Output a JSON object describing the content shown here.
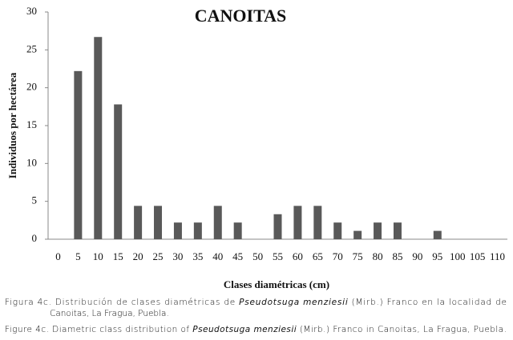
{
  "chart_data": {
    "type": "bar",
    "title": "CANOITAS",
    "x_label": "Clases diamétricas (cm)",
    "y_label": "Individuos por hectárea",
    "categories": [
      0,
      5,
      10,
      15,
      20,
      25,
      30,
      35,
      40,
      45,
      50,
      55,
      60,
      65,
      70,
      75,
      80,
      85,
      90,
      95,
      100,
      105,
      110
    ],
    "values": [
      0,
      22.2,
      26.7,
      17.8,
      4.4,
      4.4,
      2.2,
      2.2,
      4.4,
      2.2,
      0,
      3.3,
      4.4,
      4.4,
      2.2,
      1.1,
      2.2,
      2.2,
      0,
      1.1,
      0,
      0,
      0
    ],
    "color": "#595959",
    "ylim": [
      0,
      30
    ],
    "yticks": [
      0,
      5,
      10,
      15,
      20,
      25,
      30
    ],
    "grid": false
  },
  "captions": [
    [
      "Figura 4c. Distribución de clases diamétricas de ",
      "Pseudotsuga menziesii",
      " (Mirb.) Franco  en la localidad de"
    ],
    [
      "Canoitas, La Fragua, Puebla."
    ],
    [
      "Figure 4c. Diametric class distribution of ",
      "Pseudotsuga menziesii",
      " (Mirb.) Franco in Canoitas, La Fragua, Puebla."
    ]
  ]
}
